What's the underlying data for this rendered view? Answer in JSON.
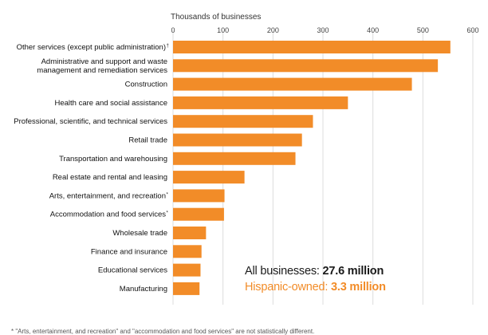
{
  "chart_data": {
    "type": "bar",
    "orientation": "horizontal",
    "title": "",
    "xlabel": "Thousands of businesses",
    "ylabel": "",
    "xlim": [
      0,
      600
    ],
    "xticks": [
      "0",
      "100",
      "200",
      "300",
      "400",
      "500",
      "600"
    ],
    "grid": true,
    "bar_color": "#f28c28",
    "grid_color": "#dcdcdc",
    "categories": [
      {
        "lines": [
          "Other services (except public administration)"
        ],
        "mark": "†"
      },
      {
        "lines": [
          "Administrative and support and waste",
          "management and remediation services"
        ],
        "mark": ""
      },
      {
        "lines": [
          "Construction"
        ],
        "mark": ""
      },
      {
        "lines": [
          "Health care and social assistance"
        ],
        "mark": ""
      },
      {
        "lines": [
          "Professional, scientific, and technical services"
        ],
        "mark": ""
      },
      {
        "lines": [
          "Retail trade"
        ],
        "mark": ""
      },
      {
        "lines": [
          "Transportation and warehousing"
        ],
        "mark": ""
      },
      {
        "lines": [
          "Real estate and rental and leasing"
        ],
        "mark": ""
      },
      {
        "lines": [
          "Arts, entertainment, and recreation"
        ],
        "mark": "*"
      },
      {
        "lines": [
          "Accommodation and food services"
        ],
        "mark": "*"
      },
      {
        "lines": [
          "Wholesale trade"
        ],
        "mark": ""
      },
      {
        "lines": [
          "Finance and insurance"
        ],
        "mark": ""
      },
      {
        "lines": [
          "Educational services"
        ],
        "mark": ""
      },
      {
        "lines": [
          "Manufacturing"
        ],
        "mark": ""
      }
    ],
    "values": [
      555,
      530,
      478,
      350,
      280,
      258,
      245,
      143,
      103,
      102,
      66,
      57,
      55,
      53
    ]
  },
  "summary": {
    "all_label": "All businesses: ",
    "all_value": "27.6 million",
    "hispanic_label": "Hispanic-owned: ",
    "hispanic_value": "3.3 million",
    "all_color": "#1a1a1a",
    "hispanic_color": "#f28c28"
  },
  "footnote": "* \"Arts, entertainment, and recreation\" and \"accommodation and food services\" are not statistically different."
}
